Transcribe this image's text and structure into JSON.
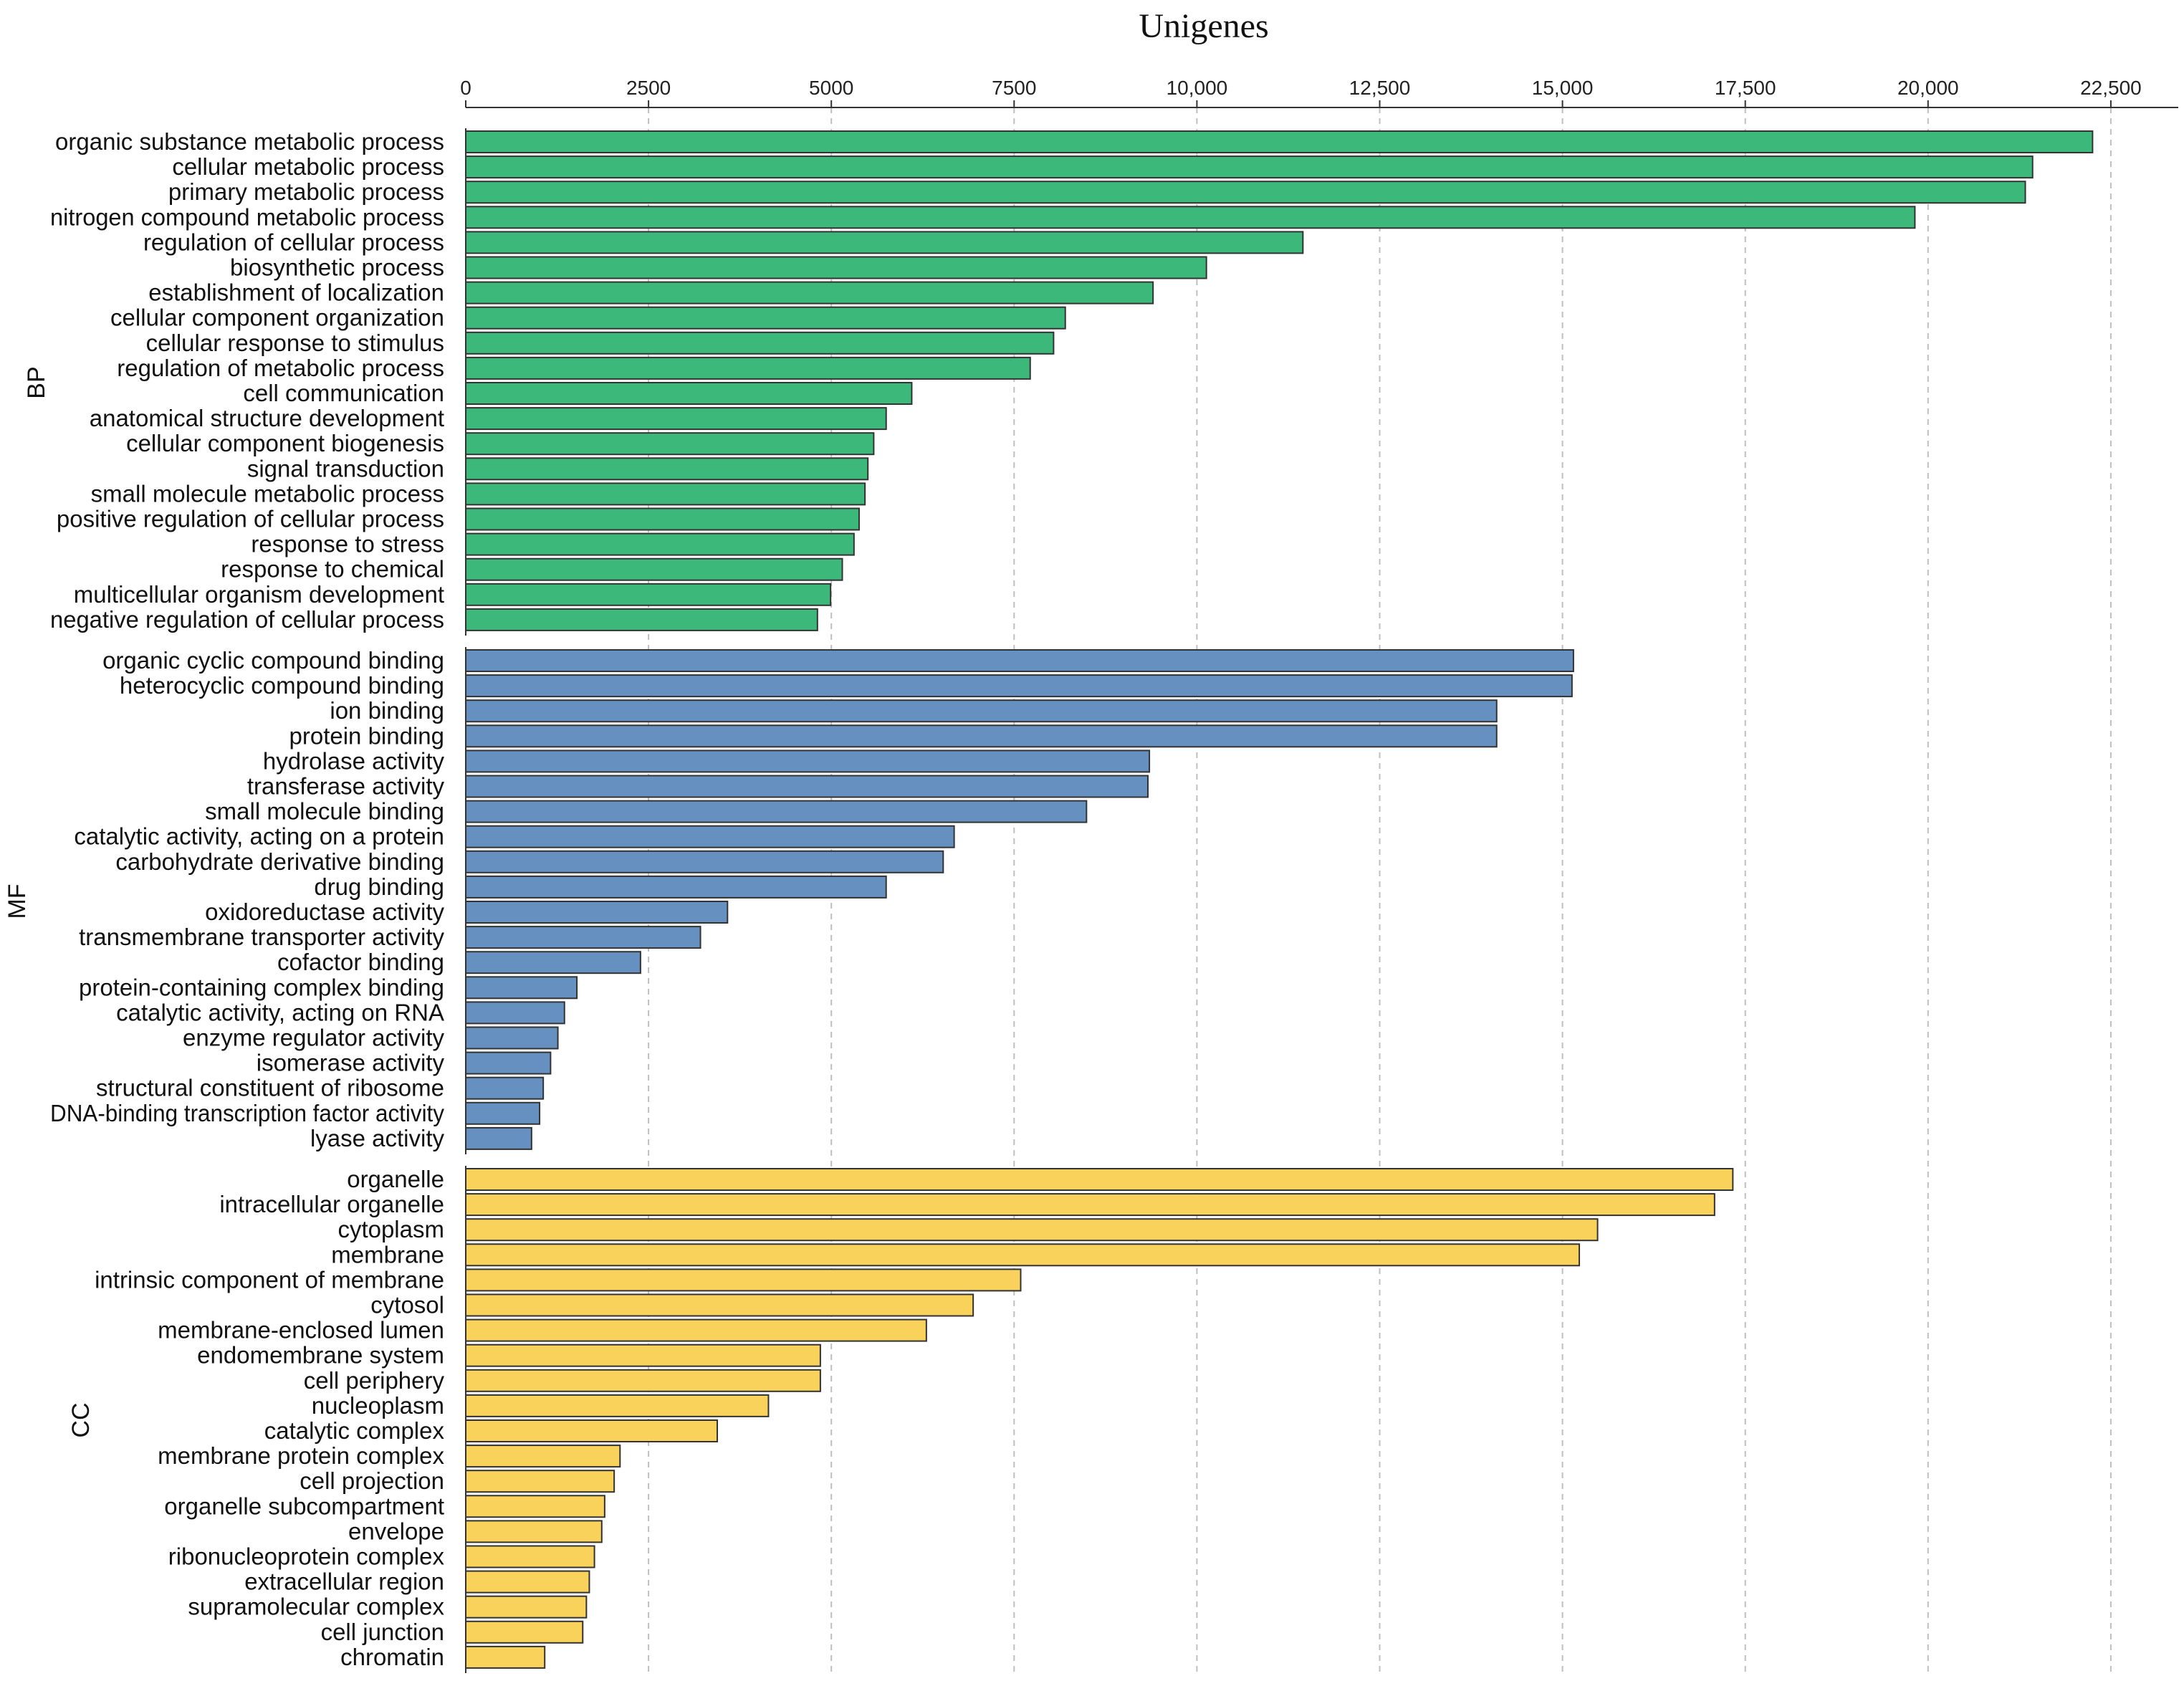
{
  "chart_data": {
    "type": "bar",
    "orientation": "horizontal",
    "title": "Unigenes",
    "xlabel": "Unigenes",
    "xlim": [
      0,
      23400
    ],
    "xticks": [
      0,
      2500,
      5000,
      7500,
      10000,
      12500,
      15000,
      17500,
      20000,
      22500
    ],
    "xtick_labels": [
      "0",
      "2500",
      "5000",
      "7500",
      "10,000",
      "12,500",
      "15,000",
      "17,500",
      "20,000",
      "22,500"
    ],
    "grid": true,
    "groups": [
      {
        "name": "BP",
        "color": "#3cb97a",
        "categories": [
          "organic substance metabolic process",
          "cellular metabolic process",
          "primary metabolic process",
          "nitrogen compound metabolic process",
          "regulation of cellular process",
          "biosynthetic process",
          "establishment of localization",
          "cellular component organization",
          "cellular response to stimulus",
          "regulation of metabolic process",
          "cell communication",
          "anatomical structure development",
          "cellular component biogenesis",
          "signal transduction",
          "small molecule metabolic process",
          "positive regulation of cellular process",
          "response to stress",
          "response to chemical",
          "multicellular organism development",
          "negative regulation of cellular process"
        ],
        "values": [
          22250,
          21430,
          21330,
          19820,
          11450,
          10130,
          9400,
          8200,
          8040,
          7720,
          6100,
          5750,
          5580,
          5500,
          5460,
          5380,
          5310,
          5150,
          4990,
          4810
        ]
      },
      {
        "name": "MF",
        "color": "#6690bf",
        "categories": [
          "organic cyclic compound binding",
          "heterocyclic compound binding",
          "ion binding",
          "protein binding",
          "hydrolase activity",
          "transferase activity",
          "small molecule binding",
          "catalytic activity, acting on a protein",
          "carbohydrate derivative binding",
          "drug binding",
          "oxidoreductase activity",
          "transmembrane transporter activity",
          "cofactor binding",
          "protein-containing complex binding",
          "catalytic activity, acting on RNA",
          "enzyme regulator activity",
          "isomerase activity",
          "structural constituent of ribosome",
          "DNA-binding transcription factor activity",
          "lyase activity"
        ],
        "values": [
          15150,
          15130,
          14100,
          14100,
          9350,
          9330,
          8490,
          6680,
          6530,
          5750,
          3580,
          3210,
          2390,
          1520,
          1350,
          1260,
          1160,
          1060,
          1010,
          900
        ]
      },
      {
        "name": "CC",
        "color": "#f8d25b",
        "categories": [
          "organelle",
          "intracellular organelle",
          "cytoplasm",
          "membrane",
          "intrinsic component of membrane",
          "cytosol",
          "membrane-enclosed lumen",
          "endomembrane system",
          "cell periphery",
          "nucleoplasm",
          "catalytic complex",
          "membrane protein complex",
          "cell projection",
          "organelle subcompartment",
          "envelope",
          "ribonucleoprotein complex",
          "extracellular region",
          "supramolecular complex",
          "cell junction",
          "chromatin"
        ],
        "values": [
          17330,
          17080,
          15480,
          15230,
          7590,
          6940,
          6300,
          4850,
          4850,
          4140,
          3440,
          2110,
          2030,
          1900,
          1860,
          1760,
          1690,
          1650,
          1600,
          1080
        ]
      }
    ]
  }
}
